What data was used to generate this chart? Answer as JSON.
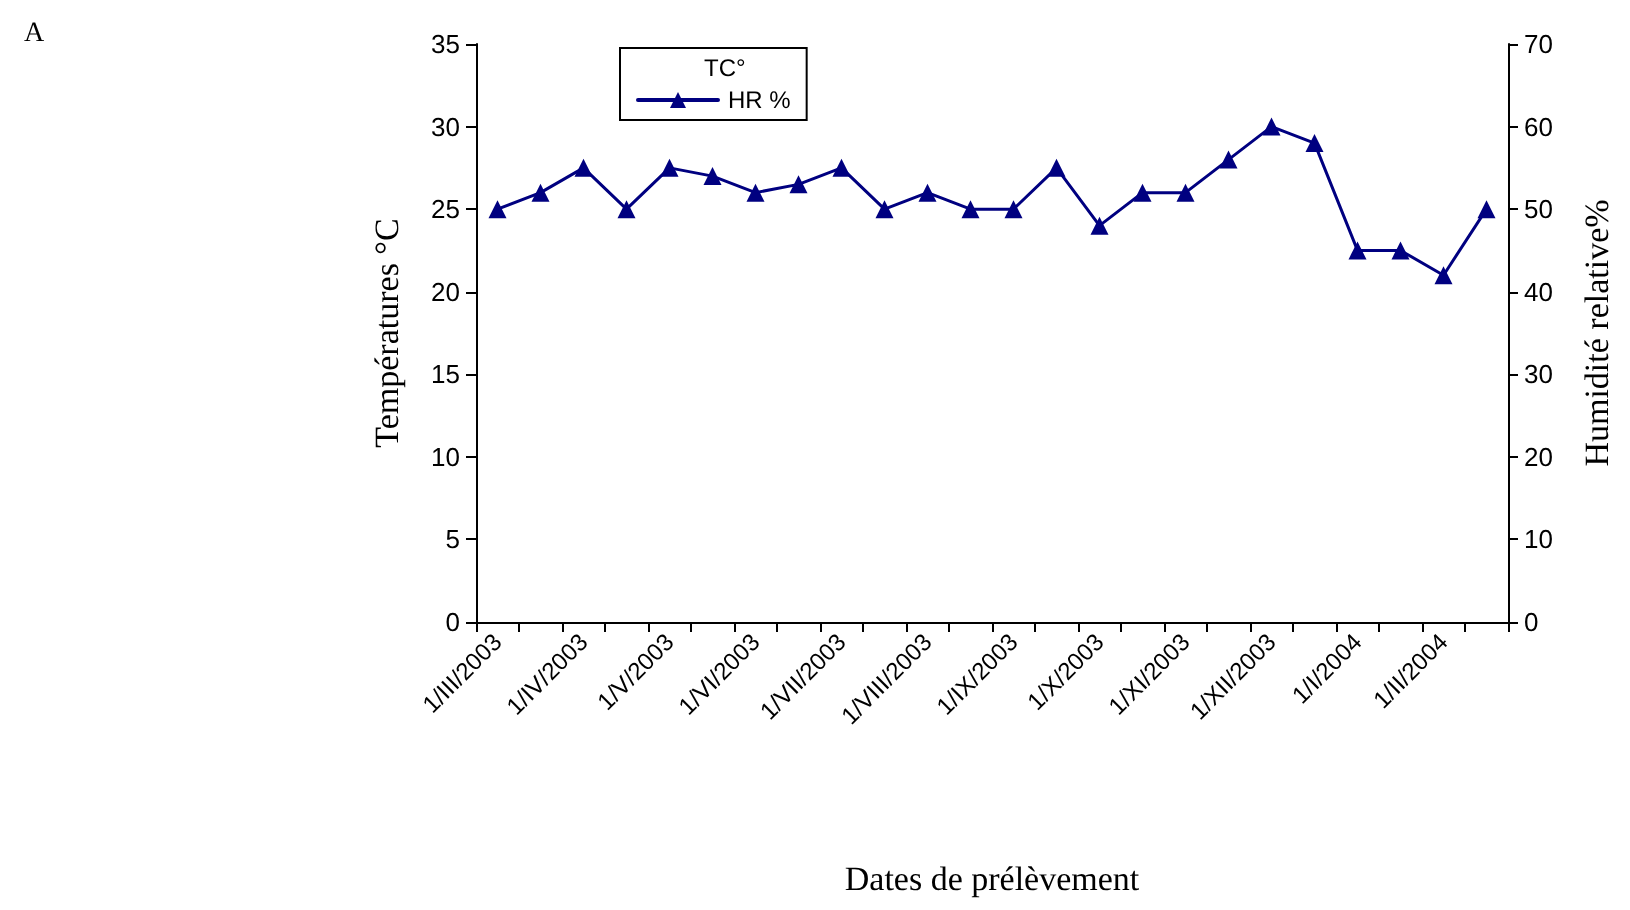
{
  "chart_data": {
    "type": "line",
    "title": "A",
    "xlabel": "Dates de prélèvement",
    "ylabel": "Températures °C",
    "y2label": "Humidité relative%",
    "legend_title": "TC°",
    "categories": [
      "1/III/2003",
      null,
      "1/IV/2003",
      null,
      "1/V/2003",
      null,
      "1/VI/2003",
      null,
      "1/VII/2003",
      null,
      "1/VIII/2003",
      null,
      "1/IX/2003",
      null,
      "1/X/2003",
      null,
      "1/XI/2003",
      null,
      "1/XII/2003",
      null,
      "1/I/2004",
      null,
      "1/II/2004",
      null
    ],
    "series": [
      {
        "name": "HR %",
        "color": "#000080",
        "axis": "y2",
        "values": [
          50,
          52,
          55,
          50,
          55,
          54,
          52,
          53,
          55,
          50,
          52,
          50,
          50,
          55,
          48,
          52,
          52,
          56,
          60,
          58,
          45,
          45,
          42,
          50
        ]
      }
    ],
    "ylim": [
      0,
      35
    ],
    "yticks": [
      0,
      5,
      10,
      15,
      20,
      25,
      30,
      35
    ],
    "y2lim": [
      0,
      70
    ],
    "y2ticks": [
      0,
      10,
      20,
      30,
      40,
      50,
      60,
      70
    ],
    "legend": "top left",
    "grid": false,
    "marker": "triangle",
    "line_style": "solid"
  }
}
